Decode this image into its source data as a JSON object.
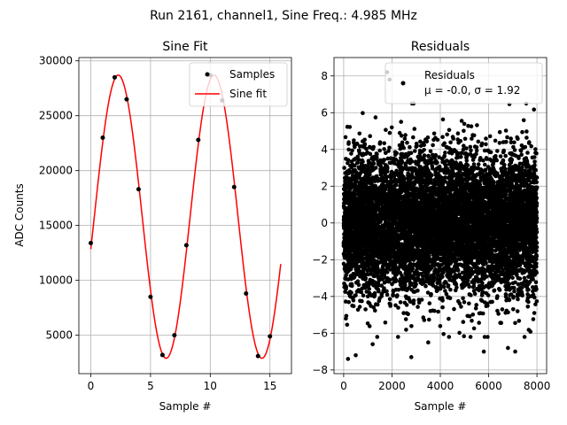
{
  "figure": {
    "suptitle": "Run 2161, channel1, Sine Freq.: 4.985 MHz"
  },
  "chart_data": [
    {
      "type": "line",
      "title": "Sine Fit",
      "xlabel": "Sample #",
      "ylabel": "ADC Counts",
      "xlim": [
        -1,
        16.8
      ],
      "ylim": [
        1500,
        30300
      ],
      "xticks": [
        0,
        5,
        10,
        15
      ],
      "yticks": [
        5000,
        10000,
        15000,
        20000,
        25000,
        30000
      ],
      "grid": true,
      "legend": {
        "placement": "top-right",
        "entries": [
          "Samples",
          "Sine fit"
        ]
      },
      "series": [
        {
          "name": "Samples",
          "kind": "scatter",
          "color": "#000000",
          "x": [
            0,
            1,
            2,
            3,
            4,
            5,
            6,
            7,
            8,
            9,
            10,
            11,
            12,
            13,
            14,
            15
          ],
          "y": [
            13400,
            23000,
            28500,
            26500,
            18300,
            8500,
            3200,
            5000,
            13200,
            22800,
            28700,
            26400,
            18500,
            8800,
            3100,
            4900
          ]
        },
        {
          "name": "Sine fit",
          "kind": "line",
          "color": "#ff0000",
          "model": {
            "amplitude": 12900,
            "offset": 15800,
            "period": 8.02,
            "peak_x": 2.3,
            "x_start": 0,
            "x_end": 15.9
          }
        }
      ]
    },
    {
      "type": "scatter",
      "title": "Residuals",
      "xlabel": "Sample #",
      "ylabel": "",
      "xlim": [
        -400,
        8400
      ],
      "ylim": [
        -8.2,
        9
      ],
      "xticks": [
        0,
        2000,
        4000,
        6000,
        8000
      ],
      "yticks": [
        -8,
        -6,
        -4,
        -2,
        0,
        2,
        4,
        6,
        8
      ],
      "grid": true,
      "legend": {
        "placement": "top-right",
        "entries": [
          "Residuals",
          "μ = -0.0, σ = 1.92"
        ]
      },
      "series": [
        {
          "name": "Residuals",
          "color": "#000000",
          "n_points": 8000,
          "mean": -0.0,
          "sigma": 1.92,
          "x_range": [
            0,
            8000
          ],
          "outliers": [
            [
              1800,
              8.2
            ],
            [
              1900,
              7.8
            ],
            [
              180,
              -7.4
            ],
            [
              2800,
              -7.3
            ],
            [
              500,
              -7.2
            ],
            [
              5800,
              -7.0
            ],
            [
              7100,
              -7.0
            ],
            [
              6800,
              -6.8
            ],
            [
              1200,
              -6.6
            ],
            [
              3500,
              -6.5
            ]
          ]
        }
      ]
    }
  ]
}
